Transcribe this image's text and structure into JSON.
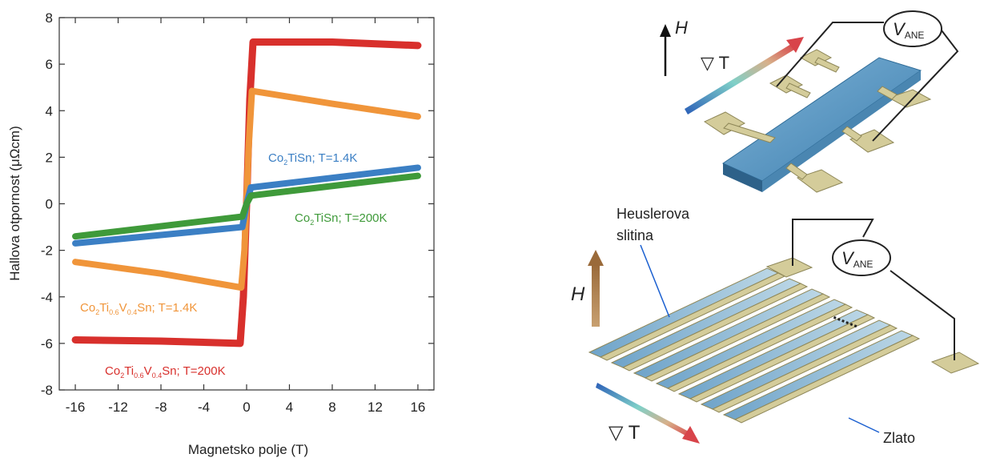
{
  "chart_data": {
    "type": "line",
    "xlabel": "Magnetsko polje (T)",
    "ylabel": "Hallova otpornost (μΩcm)",
    "xlim": [
      -17.5,
      17.5
    ],
    "ylim": [
      -8,
      8
    ],
    "xticks": [
      -16,
      -12,
      -8,
      -4,
      0,
      4,
      8,
      12,
      16
    ],
    "xtick_labels": [
      "-16",
      "-12",
      "-8",
      "-4",
      "0",
      "4",
      "8",
      "12",
      "16"
    ],
    "yticks": [
      -8,
      -6,
      -4,
      -2,
      0,
      2,
      4,
      6,
      8
    ],
    "ytick_labels": [
      "-8",
      "-6",
      "-4",
      "-2",
      "0",
      "2",
      "4",
      "6",
      "8"
    ],
    "grid": false,
    "series": [
      {
        "name": "Co2Ti0.6V0.4Sn; T=200K",
        "color": "#d8302c",
        "x": [
          -16,
          -8,
          -0.6,
          -0.3,
          0,
          0.3,
          0.6,
          8,
          16
        ],
        "y": [
          -5.85,
          -5.9,
          -6.0,
          -4.0,
          0,
          4.5,
          6.95,
          6.95,
          6.8
        ]
      },
      {
        "name": "Co2Ti0.6V0.4Sn; T=1.4K",
        "color": "#f0953a",
        "x": [
          -16,
          -8,
          -0.5,
          -0.2,
          0.2,
          0.5,
          8,
          16
        ],
        "y": [
          -2.5,
          -3.0,
          -3.6,
          -2.0,
          2.5,
          4.85,
          4.3,
          3.75
        ]
      },
      {
        "name": "Co2TiSn; T=1.4K",
        "color": "#3b7fc4",
        "x": [
          -16,
          -0.4,
          0,
          0.4,
          16
        ],
        "y": [
          -1.7,
          -1.0,
          0,
          0.7,
          1.55
        ]
      },
      {
        "name": "Co2TiSn; T=200K",
        "color": "#3f9a3a",
        "x": [
          -16,
          -0.4,
          0,
          0.4,
          16
        ],
        "y": [
          -1.4,
          -0.55,
          0,
          0.35,
          1.2
        ]
      }
    ],
    "labels": [
      {
        "key": "label_red",
        "parts": [
          "Co",
          "2",
          "Ti",
          "0.6",
          "V",
          "0.4",
          "Sn; T=200K"
        ],
        "color": "#d8302c"
      },
      {
        "key": "label_orange",
        "parts": [
          "Co",
          "2",
          "Ti",
          "0.6",
          "V",
          "0.4",
          "Sn; T=1.4K"
        ],
        "color": "#f0953a"
      },
      {
        "key": "label_blue",
        "parts": [
          "Co",
          "2",
          "TiSn; T=1.4K"
        ],
        "color": "#3b7fc4"
      },
      {
        "key": "label_green",
        "parts": [
          "Co",
          "2",
          "TiSn; T=200K"
        ],
        "color": "#3f9a3a"
      }
    ]
  },
  "diagram": {
    "top": {
      "field_label": "H",
      "gradient_label": "▽ T",
      "voltmeter_main": "V",
      "voltmeter_sub": "ANE"
    },
    "bottom": {
      "field_label": "H",
      "gradient_label": "▽ T",
      "voltmeter_main": "V",
      "voltmeter_sub": "ANE",
      "material_label_line1": "Heuslerova",
      "material_label_line2": "slitina",
      "gold_label": "Zlato",
      "dots": "......"
    }
  }
}
